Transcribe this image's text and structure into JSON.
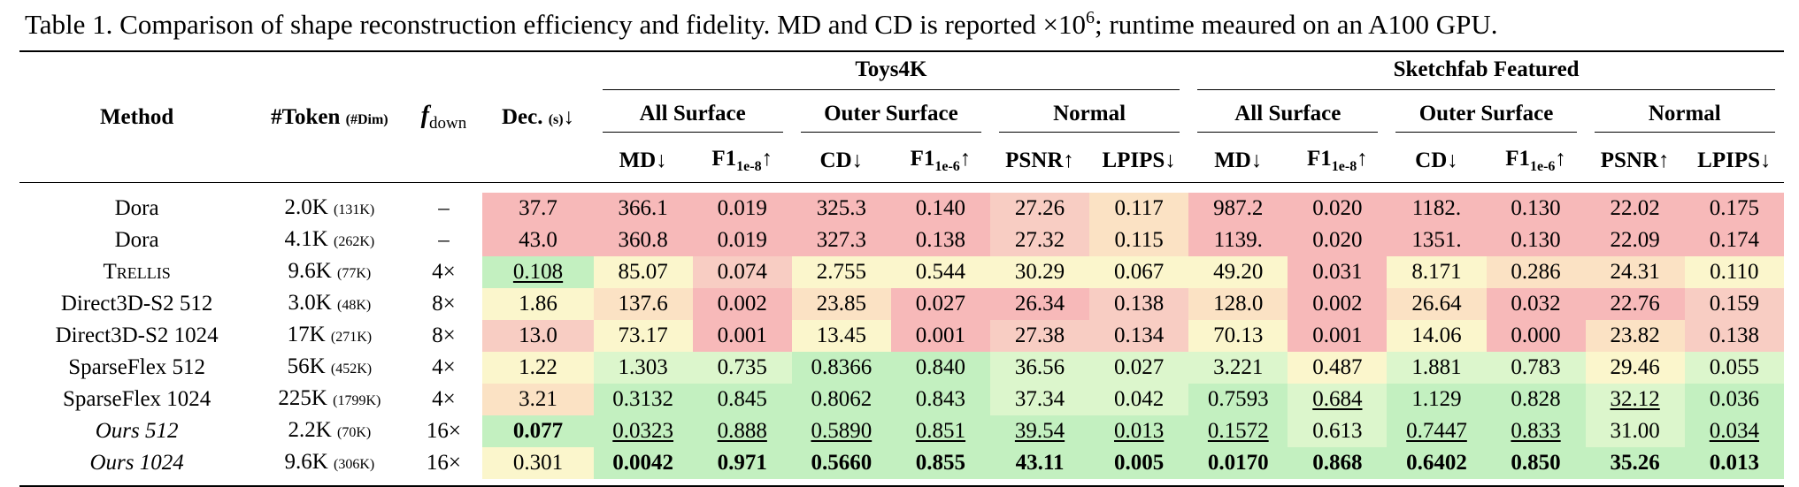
{
  "caption": {
    "label": "Table 1.",
    "text": "Comparison of shape reconstruction efficiency and fidelity. MD and CD is reported ×10",
    "sup": "6",
    "tail": "; runtime meaured on an A100 GPU."
  },
  "table": {
    "header": {
      "method": "Method",
      "token": "#Token",
      "dim": "(#Dim)",
      "f": "f",
      "f_sub": "down",
      "dec": "Dec.",
      "dec_unit": "(s)",
      "dec_arrow": "↓",
      "groups": [
        "Toys4K",
        "Sketchfab Featured"
      ],
      "subgroups": [
        "All Surface",
        "Outer Surface",
        "Normal",
        "All Surface",
        "Outer Surface",
        "Normal"
      ],
      "metrics": [
        {
          "name": "MD",
          "arrow": "↓"
        },
        {
          "name": "F1",
          "sub": "1e-8",
          "arrow": "↑"
        },
        {
          "name": "CD",
          "arrow": "↓"
        },
        {
          "name": "F1",
          "sub": "1e-6",
          "arrow": "↑"
        },
        {
          "name": "PSNR",
          "arrow": "↑"
        },
        {
          "name": "LPIPS",
          "arrow": "↓"
        },
        {
          "name": "MD",
          "arrow": "↓"
        },
        {
          "name": "F1",
          "sub": "1e-8",
          "arrow": "↑"
        },
        {
          "name": "CD",
          "arrow": "↓"
        },
        {
          "name": "F1",
          "sub": "1e-6",
          "arrow": "↑"
        },
        {
          "name": "PSNR",
          "arrow": "↑"
        },
        {
          "name": "LPIPS",
          "arrow": "↓"
        }
      ]
    },
    "rows": [
      {
        "method": "Dora",
        "token": "2.0K",
        "dim": "(131K)",
        "f": "–",
        "dec": "37.7",
        "values": [
          "366.1",
          "0.019",
          "325.3",
          "0.140",
          "27.26",
          "0.117",
          "987.2",
          "0.020",
          "1182.",
          "0.130",
          "22.02",
          "0.175"
        ]
      },
      {
        "method": "Dora",
        "token": "4.1K",
        "dim": "(262K)",
        "f": "–",
        "dec": "43.0",
        "values": [
          "360.8",
          "0.019",
          "327.3",
          "0.138",
          "27.32",
          "0.115",
          "1139.",
          "0.020",
          "1351.",
          "0.130",
          "22.09",
          "0.174"
        ]
      },
      {
        "method": "Trellis",
        "token": "9.6K",
        "dim": "(77K)",
        "f": "4×",
        "dec": "0.108",
        "values": [
          "85.07",
          "0.074",
          "2.755",
          "0.544",
          "30.29",
          "0.067",
          "49.20",
          "0.031",
          "8.171",
          "0.286",
          "24.31",
          "0.110"
        ]
      },
      {
        "method": "Direct3D-S2 512",
        "token": "3.0K",
        "dim": "(48K)",
        "f": "8×",
        "dec": "1.86",
        "values": [
          "137.6",
          "0.002",
          "23.85",
          "0.027",
          "26.34",
          "0.138",
          "128.0",
          "0.002",
          "26.64",
          "0.032",
          "22.76",
          "0.159"
        ]
      },
      {
        "method": "Direct3D-S2 1024",
        "token": "17K",
        "dim": "(271K)",
        "f": "8×",
        "dec": "13.0",
        "values": [
          "73.17",
          "0.001",
          "13.45",
          "0.001",
          "27.38",
          "0.134",
          "70.13",
          "0.001",
          "14.06",
          "0.000",
          "23.82",
          "0.138"
        ]
      },
      {
        "method": "SparseFlex 512",
        "token": "56K",
        "dim": "(452K)",
        "f": "4×",
        "dec": "1.22",
        "values": [
          "1.303",
          "0.735",
          "0.8366",
          "0.840",
          "36.56",
          "0.027",
          "3.221",
          "0.487",
          "1.881",
          "0.783",
          "29.46",
          "0.055"
        ]
      },
      {
        "method": "SparseFlex 1024",
        "token": "225K",
        "dim": "(1799K)",
        "f": "4×",
        "dec": "3.21",
        "values": [
          "0.3132",
          "0.845",
          "0.8062",
          "0.843",
          "37.34",
          "0.042",
          "0.7593",
          "0.684",
          "1.129",
          "0.828",
          "32.12",
          "0.036"
        ]
      },
      {
        "method": "Ours 512",
        "token": "2.2K",
        "dim": "(70K)",
        "f": "16×",
        "dec": "0.077",
        "values": [
          "0.0323",
          "0.888",
          "0.5890",
          "0.851",
          "39.54",
          "0.013",
          "0.1572",
          "0.613",
          "0.7447",
          "0.833",
          "31.00",
          "0.034"
        ]
      },
      {
        "method": "Ours 1024",
        "token": "9.6K",
        "dim": "(306K)",
        "f": "16×",
        "dec": "0.301",
        "values": [
          "0.0042",
          "0.971",
          "0.5660",
          "0.855",
          "43.11",
          "0.005",
          "0.0170",
          "0.868",
          "0.6402",
          "0.850",
          "35.26",
          "0.013"
        ]
      }
    ]
  }
}
